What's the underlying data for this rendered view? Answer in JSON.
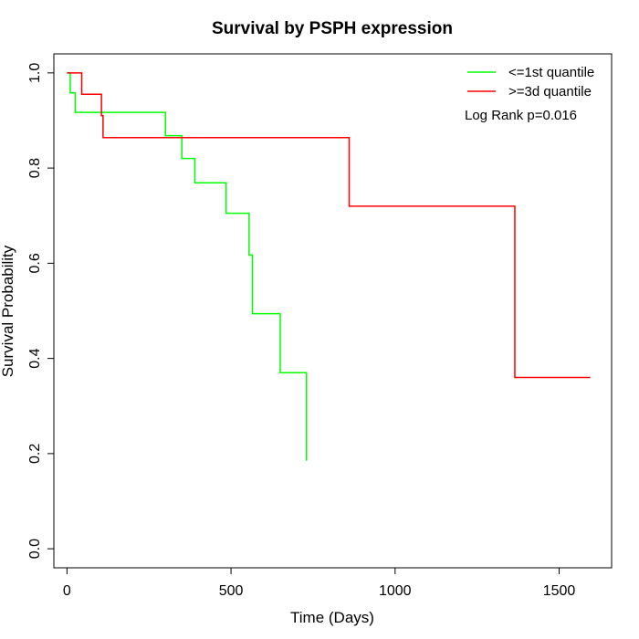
{
  "chart_data": {
    "type": "line",
    "title": "Survival by PSPH expression",
    "xlabel": "Time (Days)",
    "ylabel": "Survival Probability",
    "xlim": [
      -40,
      1660
    ],
    "ylim": [
      -0.04,
      1.04
    ],
    "x_ticks": [
      0,
      500,
      1000,
      1500
    ],
    "y_ticks": [
      0.0,
      0.2,
      0.4,
      0.6,
      0.8,
      1.0
    ],
    "x_tick_labels": [
      "0",
      "500",
      "1000",
      "1500"
    ],
    "y_tick_labels": [
      "0.0",
      "0.2",
      "0.4",
      "0.6",
      "0.8",
      "1.0"
    ],
    "grid": false,
    "legend_position": "top-right",
    "annotation": "Log Rank p=0.016",
    "series": [
      {
        "name": "<=1st quantile",
        "color": "#00ff00",
        "step": true,
        "x": [
          0,
          10,
          25,
          285,
          300,
          350,
          390,
          485,
          555,
          565,
          650,
          730
        ],
        "y": [
          1.0,
          0.958,
          0.917,
          0.917,
          0.868,
          0.82,
          0.769,
          0.705,
          0.617,
          0.494,
          0.37,
          0.185
        ]
      },
      {
        "name": ">=3d quantile",
        "color": "#ff0000",
        "step": true,
        "x": [
          0,
          45,
          105,
          110,
          860,
          1365,
          1595
        ],
        "y": [
          1.0,
          0.955,
          0.91,
          0.864,
          0.72,
          0.36,
          0.36
        ]
      }
    ]
  }
}
